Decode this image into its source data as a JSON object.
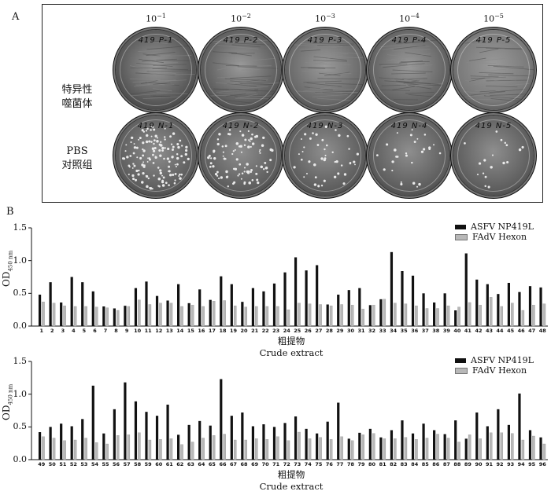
{
  "panel_a": {
    "letter": "A",
    "dilutions": [
      {
        "base": "10",
        "exp": "−1"
      },
      {
        "base": "10",
        "exp": "−2"
      },
      {
        "base": "10",
        "exp": "−3"
      },
      {
        "base": "10",
        "exp": "−4"
      },
      {
        "base": "10",
        "exp": "−5"
      }
    ],
    "rows": [
      {
        "label_lines": [
          "特异性",
          "噬菌体"
        ],
        "dish_labels": [
          "419 P-1",
          "419 P-2",
          "419 P-3",
          "419 P-4",
          "419 P-5"
        ]
      },
      {
        "label_lines": [
          "PBS",
          "对照组"
        ],
        "dish_labels": [
          "419 N-1",
          "419 N-2",
          "419 N-3",
          "419 N-4",
          "419 N-5"
        ]
      }
    ]
  },
  "panel_b": {
    "letter": "B",
    "ylabel": "OD",
    "ylabel_sub": "450 nm",
    "xlabel_cn": "粗提物",
    "xlabel_en": "Crude extract",
    "legend": [
      {
        "name": "ASFV NP419L",
        "color": "#111111"
      },
      {
        "name": "FAdV Hexon",
        "color": "#b8b8b8"
      }
    ]
  },
  "chart_data": [
    {
      "type": "bar",
      "categories": [
        "1",
        "2",
        "3",
        "4",
        "5",
        "6",
        "7",
        "8",
        "9",
        "10",
        "11",
        "12",
        "13",
        "14",
        "15",
        "16",
        "17",
        "18",
        "19",
        "20",
        "21",
        "22",
        "23",
        "24",
        "25",
        "26",
        "27",
        "28",
        "29",
        "30",
        "31",
        "32",
        "33",
        "34",
        "35",
        "36",
        "37",
        "38",
        "39",
        "40",
        "41",
        "42",
        "43",
        "44",
        "45",
        "46",
        "47",
        "48"
      ],
      "series": [
        {
          "name": "ASFV NP419L",
          "values": [
            0.48,
            0.67,
            0.36,
            0.75,
            0.67,
            0.53,
            0.3,
            0.27,
            0.31,
            0.58,
            0.68,
            0.46,
            0.39,
            0.64,
            0.35,
            0.56,
            0.4,
            0.76,
            0.64,
            0.37,
            0.58,
            0.53,
            0.65,
            0.82,
            1.05,
            0.85,
            0.93,
            0.33,
            0.48,
            0.55,
            0.58,
            0.32,
            0.41,
            1.13,
            0.84,
            0.77,
            0.5,
            0.36,
            0.5,
            0.24,
            1.11,
            0.71,
            0.64,
            0.49,
            0.66,
            0.52,
            0.61,
            0.59
          ]
        },
        {
          "name": "FAdV Hexon",
          "values": [
            0.37,
            0.35,
            0.31,
            0.3,
            0.3,
            0.29,
            0.28,
            0.24,
            0.3,
            0.4,
            0.33,
            0.35,
            0.35,
            0.3,
            0.32,
            0.3,
            0.38,
            0.39,
            0.31,
            0.29,
            0.3,
            0.3,
            0.3,
            0.25,
            0.35,
            0.34,
            0.33,
            0.31,
            0.33,
            0.32,
            0.26,
            0.32,
            0.41,
            0.35,
            0.34,
            0.31,
            0.27,
            0.27,
            0.31,
            0.29,
            0.36,
            0.32,
            0.44,
            0.3,
            0.35,
            0.24,
            0.32,
            0.34
          ]
        }
      ],
      "ylim": [
        0,
        1.5
      ],
      "yticks": [
        "0.0",
        "0.5",
        "1.0",
        "1.5"
      ]
    },
    {
      "type": "bar",
      "categories": [
        "49",
        "50",
        "51",
        "52",
        "53",
        "54",
        "55",
        "56",
        "57",
        "58",
        "59",
        "60",
        "61",
        "62",
        "63",
        "64",
        "65",
        "66",
        "67",
        "68",
        "69",
        "70",
        "71",
        "72",
        "73",
        "74",
        "75",
        "76",
        "77",
        "78",
        "79",
        "80",
        "81",
        "82",
        "83",
        "84",
        "85",
        "86",
        "87",
        "88",
        "89",
        "90",
        "91",
        "92",
        "93",
        "94",
        "95",
        "96"
      ],
      "series": [
        {
          "name": "ASFV NP419L",
          "values": [
            0.42,
            0.5,
            0.55,
            0.51,
            0.62,
            1.13,
            0.4,
            0.77,
            1.18,
            0.89,
            0.73,
            0.67,
            0.84,
            0.38,
            0.53,
            0.59,
            0.52,
            1.23,
            0.67,
            0.72,
            0.51,
            0.54,
            0.5,
            0.56,
            0.66,
            0.47,
            0.4,
            0.58,
            0.87,
            0.32,
            0.41,
            0.47,
            0.34,
            0.45,
            0.6,
            0.4,
            0.55,
            0.45,
            0.39,
            0.6,
            0.32,
            0.72,
            0.51,
            0.77,
            0.53,
            1.01,
            0.45,
            0.34
          ]
        },
        {
          "name": "FAdV Hexon",
          "values": [
            0.35,
            0.33,
            0.29,
            0.3,
            0.33,
            0.26,
            0.24,
            0.37,
            0.38,
            0.41,
            0.3,
            0.31,
            0.32,
            0.23,
            0.27,
            0.33,
            0.37,
            0.39,
            0.3,
            0.3,
            0.32,
            0.31,
            0.35,
            0.29,
            0.42,
            0.32,
            0.34,
            0.31,
            0.35,
            0.29,
            0.38,
            0.4,
            0.32,
            0.32,
            0.34,
            0.31,
            0.33,
            0.39,
            0.33,
            0.27,
            0.38,
            0.32,
            0.41,
            0.41,
            0.4,
            0.3,
            0.36,
            0.24
          ]
        }
      ],
      "ylim": [
        0,
        1.5
      ],
      "yticks": [
        "0.0",
        "0.5",
        "1.0",
        "1.5"
      ]
    }
  ]
}
